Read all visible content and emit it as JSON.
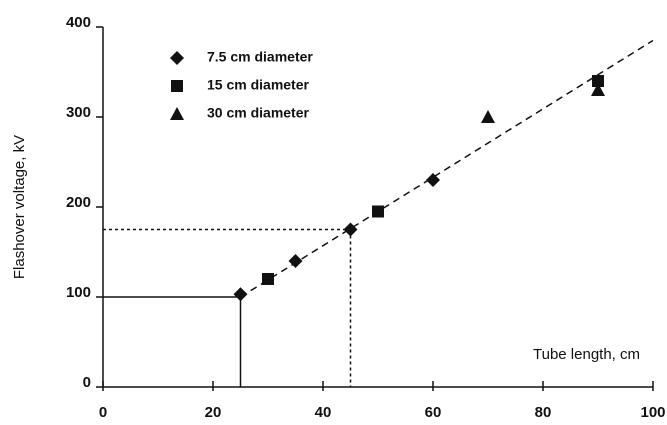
{
  "chart_data": {
    "type": "scatter",
    "ylabel": "Flashover voltage, kV",
    "xlabel": "Tube length, cm",
    "xlim": [
      0,
      100
    ],
    "xticks": [
      0,
      20,
      40,
      60,
      80,
      100
    ],
    "ylim": [
      0,
      400
    ],
    "yticks": [
      0,
      100,
      200,
      300,
      400
    ],
    "legend": "upper left",
    "series": [
      {
        "name": "7.5 cm diameter",
        "marker": "diamond",
        "color": "#111111",
        "x": [
          25,
          35,
          45,
          60
        ],
        "values": [
          103,
          140,
          175,
          230
        ]
      },
      {
        "name": "15 cm diameter",
        "marker": "square",
        "color": "#111111",
        "x": [
          30,
          50,
          90
        ],
        "values": [
          120,
          195,
          340
        ]
      },
      {
        "name": "30 cm diameter",
        "marker": "triangle",
        "color": "#111111",
        "x": [
          70,
          90
        ],
        "values": [
          300,
          330
        ]
      }
    ],
    "fit_line": {
      "x": [
        25,
        100
      ],
      "y": [
        100,
        385
      ]
    },
    "guides": [
      {
        "x": 25,
        "y": 100,
        "style": "solid"
      },
      {
        "x": 45,
        "y": 175,
        "style": "dotted"
      }
    ]
  }
}
